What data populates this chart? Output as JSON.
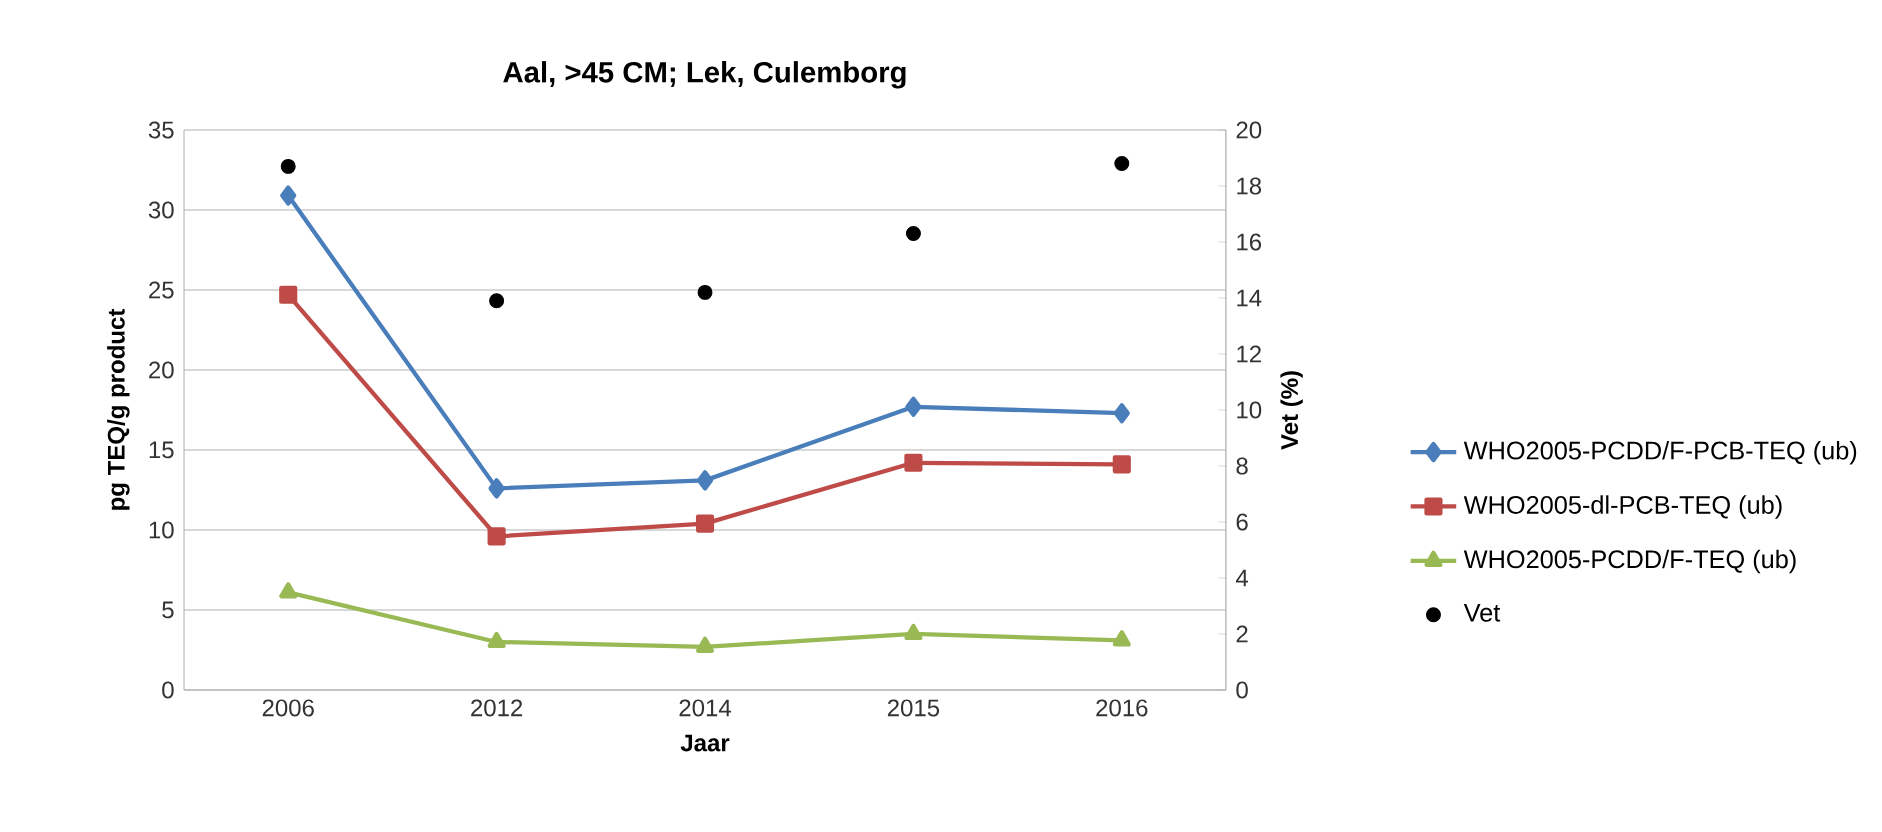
{
  "chart_data": {
    "type": "line",
    "title": "Aal, >45 CM; Lek, Culemborg",
    "xlabel": "Jaar",
    "ylabel": "pg TEQ/g product",
    "y2label": "Vet (%)",
    "categories": [
      "2006",
      "2012",
      "2014",
      "2015",
      "2016"
    ],
    "series": [
      {
        "name": "WHO2005-PCDD/F-PCB-TEQ (ub)",
        "color": "#4a7ebb",
        "marker": "diamond",
        "values": [
          30.9,
          12.6,
          13.1,
          17.7,
          17.3
        ]
      },
      {
        "name": "WHO2005-dl-PCB-TEQ (ub)",
        "color": "#be4b48",
        "marker": "square",
        "values": [
          24.7,
          9.6,
          10.4,
          14.2,
          14.1
        ]
      },
      {
        "name": "WHO2005-PCDD/F-TEQ (ub)",
        "color": "#98b954",
        "marker": "triangle",
        "values": [
          6.1,
          3.0,
          2.7,
          3.5,
          3.1
        ]
      },
      {
        "name": "Vet",
        "color": "#000000",
        "type": "scatter",
        "marker": "circle",
        "axis": "y2",
        "values": [
          18.7,
          13.9,
          14.2,
          16.3,
          18.8
        ]
      }
    ],
    "ylim": [
      0,
      35
    ],
    "yticks": [
      0,
      5,
      10,
      15,
      20,
      25,
      30,
      35
    ],
    "y2lim": [
      0,
      20
    ],
    "y2ticks": [
      0,
      2,
      4,
      6,
      8,
      10,
      12,
      14,
      16,
      18,
      20
    ],
    "grid": "y",
    "legend": "right"
  }
}
